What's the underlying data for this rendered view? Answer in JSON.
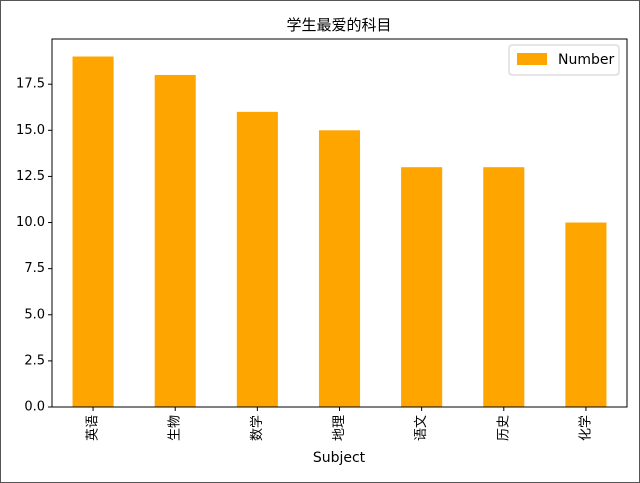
{
  "chart_data": {
    "type": "bar",
    "title": "学生最爱的科目",
    "xlabel": "Subject",
    "ylabel": "",
    "categories": [
      "英语",
      "生物",
      "数学",
      "地理",
      "语文",
      "历史",
      "化学"
    ],
    "series": [
      {
        "name": "Number",
        "values": [
          19,
          18,
          16,
          15,
          13,
          13,
          10
        ]
      }
    ],
    "ylim": [
      0,
      19.95
    ],
    "yticks": [
      "0.0",
      "2.5",
      "5.0",
      "7.5",
      "10.0",
      "12.5",
      "15.0",
      "17.5"
    ],
    "bar_color": "#FFA500",
    "legend": "top-right",
    "grid": false
  }
}
